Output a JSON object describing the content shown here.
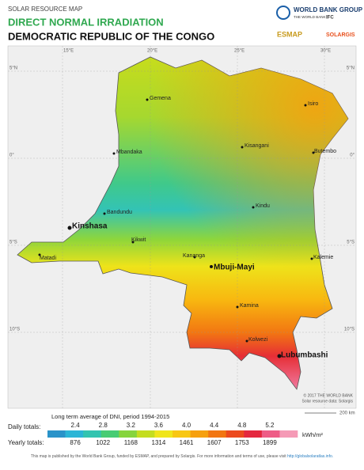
{
  "header": {
    "kicker": "SOLAR RESOURCE MAP",
    "title": "DIRECT NORMAL IRRADIATION",
    "subtitle": "DEMOCRATIC REPUBLIC OF THE CONGO",
    "logos": [
      "WORLD BANK GROUP",
      "THE WORLD BANK",
      "IFC",
      "ESMAP",
      "SOLARGIS"
    ]
  },
  "map": {
    "longitudes": [
      "15°E",
      "20°E",
      "25°E",
      "30°E"
    ],
    "latitudes": [
      "5°N",
      "0°",
      "5°S",
      "10°S"
    ],
    "cities": [
      "Gemena",
      "Isiro",
      "Mbandaka",
      "Kisangani",
      "Butembo",
      "Bandundu",
      "Kindu",
      "Kinshasa",
      "Kikwit",
      "Matadi",
      "Kananga",
      "Mbuji-Mayi",
      "Kalemie",
      "Kamina",
      "Kolwezi",
      "Lubumbashi"
    ],
    "credits": [
      "© 2017 THE WORLD BANK",
      "Solar resource data: Solargis"
    ],
    "scale": "200 km"
  },
  "legend": {
    "title": "Long term average of DNI, period 1994-2015",
    "daily_label": "Daily totals:",
    "yearly_label": "Yearly totals:",
    "daily": [
      "2.4",
      "2.8",
      "3.2",
      "3.6",
      "4.0",
      "4.4",
      "4.8",
      "5.2"
    ],
    "yearly": [
      876,
      1022,
      1168,
      1314,
      1461,
      1607,
      1753,
      1899
    ],
    "unit": "kWh/m²",
    "colors": [
      "#2a93c9",
      "#2bb5d6",
      "#33c4b0",
      "#47cc74",
      "#86d43c",
      "#c4dd1f",
      "#f0e51a",
      "#f8c712",
      "#f6a00f",
      "#f27612",
      "#ec4a1e",
      "#e4283f",
      "#ee5c86",
      "#f59ab6"
    ]
  },
  "footer": {
    "text": "This map is published by the World Bank Group, funded by ESMAP, and prepared by Solargis. For more information and terms of use, please visit ",
    "link": "http://globalsolaratlas.info."
  }
}
